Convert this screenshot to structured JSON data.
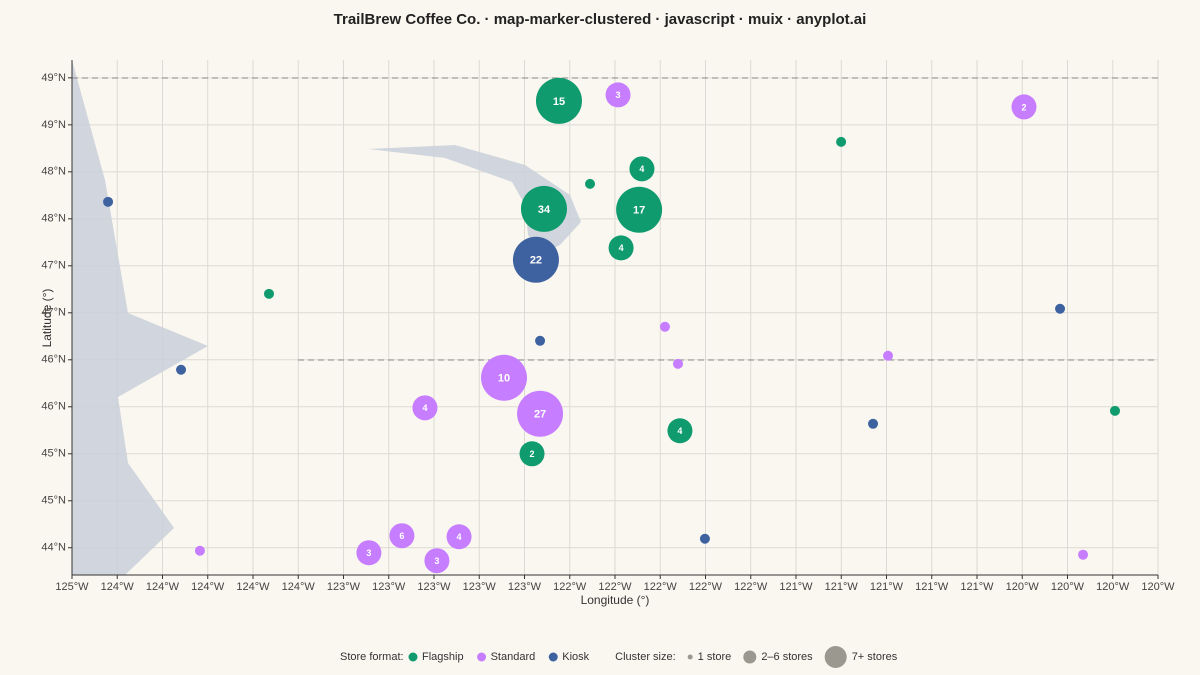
{
  "chart_data": {
    "type": "scatter",
    "title": "TrailBrew Coffee Co. · map-marker-clustered · javascript · muix · anyplot.ai",
    "x_label": "Longitude (°)",
    "y_label": "Latitude (°)",
    "xlim": [
      -125,
      -120
    ],
    "ylim": [
      43.71,
      49.19
    ],
    "xticks": [
      {
        "value": -125,
        "label": "125°W"
      },
      {
        "value": -124.7917,
        "label": "124°W"
      },
      {
        "value": -124.5833,
        "label": "124°W"
      },
      {
        "value": -124.375,
        "label": "124°W"
      },
      {
        "value": -124.1667,
        "label": "124°W"
      },
      {
        "value": -123.9583,
        "label": "124°W"
      },
      {
        "value": -123.75,
        "label": "123°W"
      },
      {
        "value": -123.5417,
        "label": "123°W"
      },
      {
        "value": -123.3333,
        "label": "123°W"
      },
      {
        "value": -123.125,
        "label": "123°W"
      },
      {
        "value": -122.9167,
        "label": "123°W"
      },
      {
        "value": -122.7083,
        "label": "122°W"
      },
      {
        "value": -122.5,
        "label": "122°W"
      },
      {
        "value": -122.2917,
        "label": "122°W"
      },
      {
        "value": -122.0833,
        "label": "122°W"
      },
      {
        "value": -121.875,
        "label": "122°W"
      },
      {
        "value": -121.6667,
        "label": "121°W"
      },
      {
        "value": -121.4583,
        "label": "121°W"
      },
      {
        "value": -121.25,
        "label": "121°W"
      },
      {
        "value": -121.0417,
        "label": "121°W"
      },
      {
        "value": -120.8333,
        "label": "121°W"
      },
      {
        "value": -120.625,
        "label": "120°W"
      },
      {
        "value": -120.4167,
        "label": "120°W"
      },
      {
        "value": -120.2083,
        "label": "120°W"
      },
      {
        "value": -120,
        "label": "120°W"
      }
    ],
    "yticks": [
      {
        "value": 44,
        "label": "44°N"
      },
      {
        "value": 44.5,
        "label": "45°N"
      },
      {
        "value": 45,
        "label": "45°N"
      },
      {
        "value": 45.5,
        "label": "46°N"
      },
      {
        "value": 46,
        "label": "46°N"
      },
      {
        "value": 46.5,
        "label": "47°N"
      },
      {
        "value": 47,
        "label": "47°N"
      },
      {
        "value": 47.5,
        "label": "48°N"
      },
      {
        "value": 48,
        "label": "48°N"
      },
      {
        "value": 48.5,
        "label": "49°N"
      },
      {
        "value": 49,
        "label": "49°N"
      }
    ],
    "grid": true,
    "legend_title": "Store format:",
    "size_legend_title": "Cluster size:",
    "size_legend": [
      "1 store",
      "2–6 stores",
      "7+ stores"
    ],
    "series": [
      {
        "name": "Flagship",
        "color": "#0f9b6e",
        "x": [
          -122.758,
          -121.459,
          -122.376,
          -122.615,
          -122.827,
          -122.389,
          -122.472,
          -124.093,
          -122.882,
          -122.201,
          -120.198
        ],
        "values": [
          48.755,
          48.319,
          48.032,
          47.872,
          47.606,
          47.596,
          47.191,
          46.702,
          45.0,
          45.245,
          45.457
        ],
        "sizes": [
          15,
          1,
          4,
          1,
          34,
          17,
          4,
          1,
          2,
          4,
          1
        ]
      },
      {
        "name": "Standard",
        "color": "#c77dff",
        "x": [
          -122.486,
          -120.617,
          -122.27,
          -122.21,
          -121.243,
          -123.011,
          -122.845,
          -123.375,
          -123.481,
          -123.218,
          -123.633,
          -123.32,
          -124.411,
          -120.345
        ],
        "values": [
          48.819,
          48.691,
          46.351,
          45.957,
          46.043,
          45.809,
          45.426,
          45.489,
          44.128,
          44.117,
          43.947,
          43.862,
          43.968,
          43.926
        ],
        "sizes": [
          3,
          2,
          1,
          1,
          1,
          10,
          27,
          4,
          6,
          4,
          3,
          3,
          1,
          1
        ]
      },
      {
        "name": "Kiosk",
        "color": "#3e62a0",
        "x": [
          -124.834,
          -122.864,
          -122.845,
          -124.498,
          -120.451,
          -121.312,
          -122.086
        ],
        "values": [
          47.681,
          47.064,
          46.202,
          45.894,
          46.543,
          45.319,
          44.096
        ],
        "sizes": [
          1,
          22,
          1,
          1,
          1,
          1,
          1
        ]
      }
    ]
  }
}
